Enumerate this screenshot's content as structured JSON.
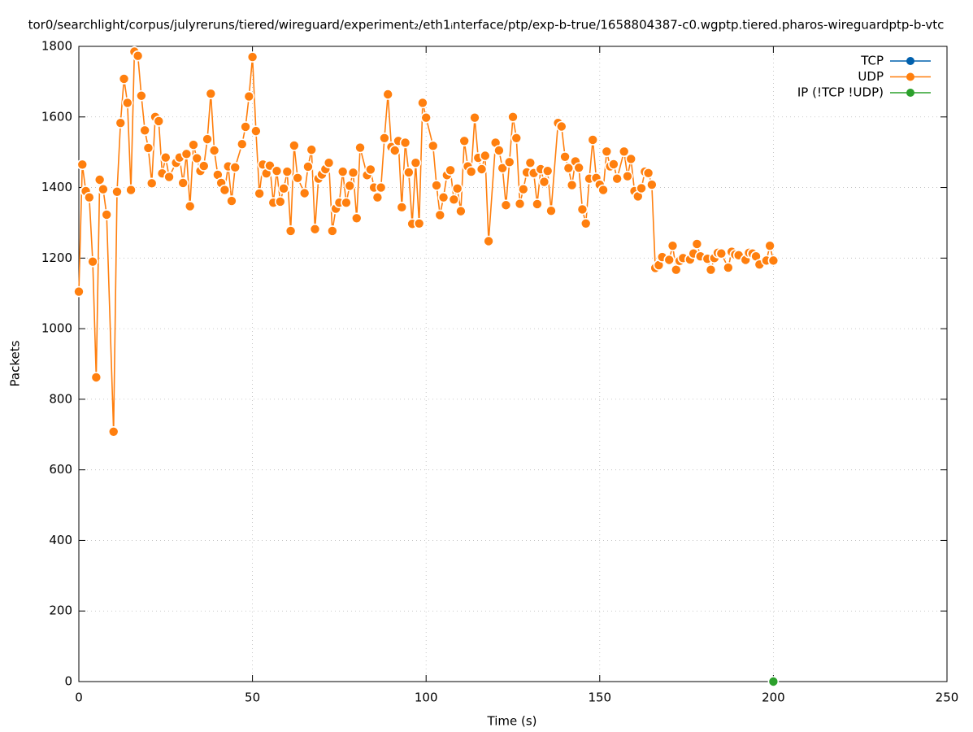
{
  "chart_data": {
    "type": "line",
    "title": "tor0/searchlight/corpus/julyreruns/tiered/wireguard/experiment₂/eth1ᵢnterface/ptp/exp-b-true/1658804387-c0.wgptp.tiered.pharos-wireguardptp-b-vtc",
    "xlabel": "Time (s)",
    "ylabel": "Packets",
    "xlim": [
      0,
      250
    ],
    "xticks": [
      0,
      50,
      100,
      150,
      200,
      250
    ],
    "ylim": [
      0,
      1800
    ],
    "yticks": [
      0,
      200,
      400,
      600,
      800,
      1000,
      1200,
      1400,
      1600,
      1800
    ],
    "grid": true,
    "legend": "top-right",
    "series": [
      {
        "name": "TCP",
        "color": "#0060ad",
        "x": [],
        "values": []
      },
      {
        "name": "UDP",
        "color": "#ff7f0e",
        "x": [
          0,
          1,
          2,
          3,
          4,
          5,
          6,
          7,
          8,
          10,
          11,
          12,
          13,
          14,
          15,
          16,
          17,
          18,
          19,
          20,
          21,
          22,
          23,
          24,
          25,
          26,
          28,
          29,
          30,
          31,
          32,
          33,
          34,
          35,
          36,
          37,
          38,
          39,
          40,
          41,
          42,
          43,
          44,
          45,
          47,
          48,
          49,
          50,
          51,
          52,
          53,
          54,
          55,
          56,
          57,
          58,
          59,
          60,
          61,
          62,
          63,
          65,
          66,
          67,
          68,
          69,
          70,
          71,
          72,
          73,
          74,
          75,
          76,
          77,
          78,
          79,
          80,
          81,
          83,
          84,
          85,
          86,
          87,
          88,
          89,
          90,
          91,
          92,
          93,
          94,
          95,
          96,
          97,
          98,
          99,
          100,
          102,
          103,
          104,
          105,
          106,
          107,
          108,
          109,
          110,
          111,
          112,
          113,
          114,
          115,
          116,
          117,
          118,
          120,
          121,
          122,
          123,
          124,
          125,
          126,
          127,
          128,
          129,
          130,
          131,
          132,
          133,
          134,
          135,
          136,
          138,
          139,
          140,
          141,
          142,
          143,
          144,
          145,
          146,
          147,
          148,
          149,
          150,
          151,
          152,
          153,
          154,
          155,
          157,
          158,
          159,
          160,
          161,
          162,
          163,
          164,
          165,
          166,
          167,
          168,
          170,
          171,
          172,
          173,
          174,
          176,
          177,
          178,
          179,
          181,
          182,
          183,
          184,
          185,
          187,
          188,
          189,
          190,
          192,
          193,
          194,
          195,
          196,
          198,
          199,
          200
        ],
        "values": [
          1105,
          1465,
          1390,
          1372,
          1190,
          862,
          1422,
          1395,
          1323,
          708,
          1388,
          1583,
          1708,
          1640,
          1393,
          1785,
          1773,
          1660,
          1562,
          1512,
          1412,
          1600,
          1588,
          1440,
          1485,
          1430,
          1470,
          1485,
          1413,
          1495,
          1347,
          1521,
          1483,
          1447,
          1461,
          1537,
          1666,
          1505,
          1436,
          1413,
          1393,
          1460,
          1362,
          1457,
          1523,
          1572,
          1658,
          1770,
          1560,
          1383,
          1465,
          1440,
          1462,
          1357,
          1447,
          1360,
          1397,
          1445,
          1277,
          1519,
          1427,
          1384,
          1459,
          1507,
          1282,
          1425,
          1437,
          1452,
          1470,
          1277,
          1340,
          1357,
          1445,
          1357,
          1405,
          1442,
          1313,
          1513,
          1435,
          1451,
          1400,
          1372,
          1400,
          1540,
          1664,
          1515,
          1505,
          1532,
          1344,
          1527,
          1443,
          1297,
          1470,
          1298,
          1640,
          1598,
          1518,
          1406,
          1322,
          1372,
          1435,
          1449,
          1366,
          1397,
          1333,
          1532,
          1460,
          1445,
          1598,
          1484,
          1452,
          1490,
          1248,
          1527,
          1505,
          1455,
          1350,
          1472,
          1600,
          1540,
          1354,
          1395,
          1443,
          1470,
          1441,
          1353,
          1452,
          1416,
          1447,
          1334,
          1583,
          1573,
          1487,
          1455,
          1407,
          1474,
          1456,
          1338,
          1298,
          1425,
          1535,
          1427,
          1408,
          1393,
          1502,
          1460,
          1466,
          1425,
          1502,
          1432,
          1481,
          1390,
          1375,
          1398,
          1445,
          1441,
          1408,
          1172,
          1180,
          1203,
          1195,
          1235,
          1167,
          1192,
          1200,
          1196,
          1213,
          1240,
          1205,
          1198,
          1167,
          1200,
          1215,
          1213,
          1173,
          1218,
          1210,
          1208,
          1195,
          1215,
          1213,
          1205,
          1182,
          1193,
          1235,
          1193
        ]
      },
      {
        "name": "IP (!TCP  !UDP)",
        "color": "#2ca02c",
        "x": [
          200
        ],
        "values": [
          0
        ]
      }
    ]
  }
}
